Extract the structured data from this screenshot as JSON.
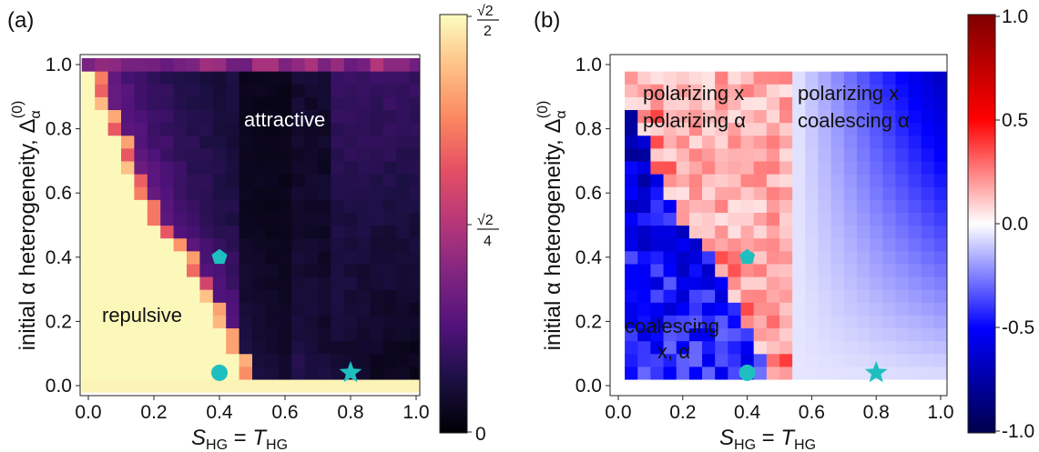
{
  "chart_data": [
    {
      "panel": "(a)",
      "type": "heatmap",
      "xlabel": "S_HG = T_HG",
      "ylabel": "initial α heterogeneity, Δ_α^(0)",
      "xlim": [
        0.0,
        1.0
      ],
      "ylim": [
        0.0,
        1.0
      ],
      "xticks": [
        "0.0",
        "0.2",
        "0.4",
        "0.6",
        "0.8",
        "1.0"
      ],
      "yticks": [
        "0.0",
        "0.2",
        "0.4",
        "0.6",
        "0.8",
        "1.0"
      ],
      "grid": false,
      "colormap": "magma",
      "colorbar": {
        "min": 0,
        "max": 0.7071,
        "tick_labels": [
          "0",
          "√2/4",
          "√2/2"
        ]
      },
      "annotations": [
        "attractive",
        "repulsive"
      ],
      "boundary_x_by_delta": [
        {
          "delta": 1.0,
          "x": 0.0
        },
        {
          "delta": 0.9,
          "x": 0.04
        },
        {
          "delta": 0.8,
          "x": 0.08
        },
        {
          "delta": 0.7,
          "x": 0.12
        },
        {
          "delta": 0.6,
          "x": 0.17
        },
        {
          "delta": 0.5,
          "x": 0.22
        },
        {
          "delta": 0.4,
          "x": 0.3
        },
        {
          "delta": 0.3,
          "x": 0.35
        },
        {
          "delta": 0.2,
          "x": 0.4
        },
        {
          "delta": 0.1,
          "x": 0.45
        },
        {
          "delta": 0.0,
          "x": 0.5
        }
      ],
      "markers": [
        {
          "shape": "pentagon",
          "x": 0.4,
          "y": 0.4,
          "color": "#1fbfbf"
        },
        {
          "shape": "circle",
          "x": 0.4,
          "y": 0.04,
          "color": "#1fbfbf"
        },
        {
          "shape": "star",
          "x": 0.8,
          "y": 0.04,
          "color": "#1fbfbf"
        }
      ]
    },
    {
      "panel": "(b)",
      "type": "heatmap",
      "xlabel": "S_HG = T_HG",
      "ylabel": "initial α heterogeneity, Δ_α^(0)",
      "xlim": [
        0.0,
        1.0
      ],
      "ylim": [
        0.0,
        1.0
      ],
      "xticks": [
        "0.0",
        "0.2",
        "0.4",
        "0.6",
        "0.8",
        "1.0"
      ],
      "yticks": [
        "0.0",
        "0.2",
        "0.4",
        "0.6",
        "0.8",
        "1.0"
      ],
      "grid": false,
      "colormap": "seismic",
      "colorbar": {
        "min": -1.0,
        "max": 1.0,
        "tick_labels": [
          "-1.0",
          "-0.5",
          "0.0",
          "0.5",
          "1.0"
        ]
      },
      "annotations": [
        "polarizing x polarizing α",
        "polarizing x coalescing α",
        "coalescing x, α"
      ],
      "markers": [
        {
          "shape": "pentagon",
          "x": 0.4,
          "y": 0.4,
          "color": "#1fbfbf"
        },
        {
          "shape": "circle",
          "x": 0.4,
          "y": 0.04,
          "color": "#1fbfbf"
        },
        {
          "shape": "star",
          "x": 0.8,
          "y": 0.04,
          "color": "#1fbfbf"
        }
      ]
    }
  ],
  "labels": {
    "panel_a": "(a)",
    "panel_b": "(b)",
    "attractive": "attractive",
    "repulsive": "repulsive",
    "pol_x": "polarizing x",
    "pol_alpha": "polarizing α",
    "pol_x2": "polarizing x",
    "coal_alpha": "coalescing α",
    "coal_line1": "coalescing",
    "coal_line2": "x, α",
    "ylabel_main": "initial α heterogeneity, Δ",
    "ylabel_sub": "α",
    "ylabel_sup": "(0)",
    "xlabel_S": "S",
    "xlabel_T": "T",
    "xlabel_sub": "HG",
    "xlabel_eq": " = ",
    "cbA_top": "√2",
    "cbA_top_den": "2",
    "cbA_mid": "√2",
    "cbA_mid_den": "4",
    "cbA_zero": "0"
  },
  "colors": {
    "marker": "#1fbfbf",
    "repulsive_fill": "#fcf8bd",
    "attractive_fill": "#05030d"
  }
}
